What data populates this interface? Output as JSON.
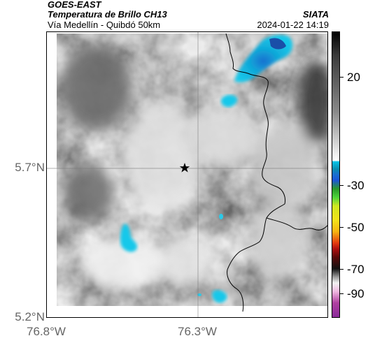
{
  "header": {
    "title": "GOES-EAST",
    "subtitle": "Temperatura de Brillo CH13",
    "route": "Vía Medellín - Quibdó 50km",
    "brand": "SIATA",
    "timestamp": "2024-01-22 14:19"
  },
  "map": {
    "lat_labels": [
      "5.7°N",
      "5.2°N"
    ],
    "lon_labels": [
      "76.8°W",
      "76.3°W"
    ],
    "marker_icon": "star-icon"
  },
  "colorbar": {
    "ticks": [
      "20",
      "-30",
      "-50",
      "-70",
      "-90"
    ]
  },
  "colors": {
    "cold_cloud_cyan": "#18c8ea",
    "cold_cloud_blue": "#1a6fd0",
    "border_line": "#000000"
  }
}
